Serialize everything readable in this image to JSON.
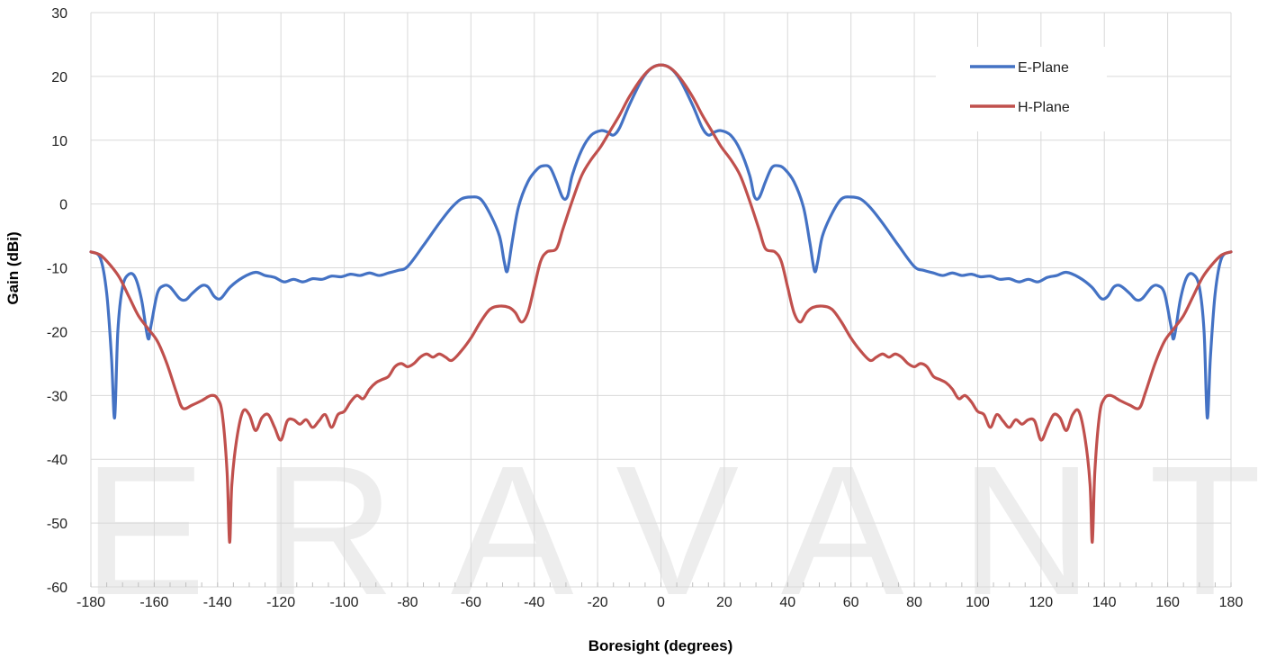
{
  "chart_data": {
    "type": "line",
    "title": "",
    "xlabel": "Boresight (degrees)",
    "ylabel": "Gain (dBi)",
    "xlim": [
      -180,
      180
    ],
    "ylim": [
      -60,
      30
    ],
    "xticks": [
      -180,
      -160,
      -140,
      -120,
      -100,
      -80,
      -60,
      -40,
      -20,
      0,
      20,
      40,
      60,
      80,
      100,
      120,
      140,
      160,
      180
    ],
    "yticks": [
      30,
      20,
      10,
      0,
      -10,
      -20,
      -30,
      -40,
      -50,
      -60
    ],
    "grid": true,
    "legend_position": "top-right",
    "watermark": "ERAVANT",
    "series": [
      {
        "name": "E-Plane",
        "color": "#4472C4",
        "points": [
          [
            -180,
            -7.5
          ],
          [
            -177,
            -8.5
          ],
          [
            -175,
            -14
          ],
          [
            -173.5,
            -24
          ],
          [
            -172.5,
            -33.5
          ],
          [
            -171.5,
            -20
          ],
          [
            -170,
            -13
          ],
          [
            -168,
            -11
          ],
          [
            -166,
            -11.5
          ],
          [
            -164,
            -15
          ],
          [
            -162,
            -21
          ],
          [
            -161,
            -19
          ],
          [
            -159,
            -14
          ],
          [
            -157,
            -12.8
          ],
          [
            -155,
            -13
          ],
          [
            -152,
            -14.8
          ],
          [
            -150,
            -15
          ],
          [
            -148,
            -14
          ],
          [
            -145,
            -12.8
          ],
          [
            -143,
            -13
          ],
          [
            -141,
            -14.5
          ],
          [
            -139,
            -14.8
          ],
          [
            -136,
            -13
          ],
          [
            -132,
            -11.5
          ],
          [
            -128,
            -10.7
          ],
          [
            -125,
            -11.2
          ],
          [
            -122,
            -11.5
          ],
          [
            -119,
            -12.2
          ],
          [
            -116,
            -11.8
          ],
          [
            -113,
            -12.2
          ],
          [
            -110,
            -11.7
          ],
          [
            -107,
            -11.8
          ],
          [
            -104,
            -11.3
          ],
          [
            -101,
            -11.4
          ],
          [
            -98,
            -11
          ],
          [
            -95,
            -11.2
          ],
          [
            -92,
            -10.8
          ],
          [
            -89,
            -11.2
          ],
          [
            -86,
            -10.8
          ],
          [
            -83,
            -10.4
          ],
          [
            -80,
            -9.8
          ],
          [
            -75,
            -6.5
          ],
          [
            -70,
            -3
          ],
          [
            -66,
            -0.5
          ],
          [
            -63,
            0.8
          ],
          [
            -60,
            1.1
          ],
          [
            -57,
            0.8
          ],
          [
            -54,
            -1.5
          ],
          [
            -51,
            -5
          ],
          [
            -49.5,
            -9
          ],
          [
            -48.5,
            -10.5
          ],
          [
            -47,
            -6
          ],
          [
            -45,
            -0.5
          ],
          [
            -42,
            3.5
          ],
          [
            -39,
            5.5
          ],
          [
            -37,
            6
          ],
          [
            -35,
            5.7
          ],
          [
            -33,
            3.5
          ],
          [
            -31,
            1
          ],
          [
            -29.5,
            1.2
          ],
          [
            -28,
            4.5
          ],
          [
            -25,
            8.5
          ],
          [
            -22,
            10.8
          ],
          [
            -19,
            11.5
          ],
          [
            -17,
            11.3
          ],
          [
            -15,
            10.8
          ],
          [
            -13,
            12
          ],
          [
            -10,
            15.5
          ],
          [
            -6,
            19.5
          ],
          [
            -3,
            21.3
          ],
          [
            0,
            21.8
          ],
          [
            3,
            21.3
          ],
          [
            6,
            19.5
          ],
          [
            10,
            15.5
          ],
          [
            13,
            12
          ],
          [
            15,
            10.8
          ],
          [
            17,
            11.3
          ],
          [
            19,
            11.5
          ],
          [
            22,
            10.8
          ],
          [
            25,
            8.5
          ],
          [
            28,
            4.5
          ],
          [
            29.5,
            1.2
          ],
          [
            31,
            1
          ],
          [
            33,
            3.5
          ],
          [
            35,
            5.7
          ],
          [
            37,
            6
          ],
          [
            39,
            5.5
          ],
          [
            42,
            3.5
          ],
          [
            45,
            -0.5
          ],
          [
            47,
            -6
          ],
          [
            48.5,
            -10.5
          ],
          [
            49.5,
            -9
          ],
          [
            51,
            -5
          ],
          [
            54,
            -1.5
          ],
          [
            57,
            0.8
          ],
          [
            60,
            1.1
          ],
          [
            63,
            0.8
          ],
          [
            66,
            -0.5
          ],
          [
            70,
            -3
          ],
          [
            75,
            -6.5
          ],
          [
            80,
            -9.8
          ],
          [
            83,
            -10.4
          ],
          [
            86,
            -10.8
          ],
          [
            89,
            -11.2
          ],
          [
            92,
            -10.8
          ],
          [
            95,
            -11.2
          ],
          [
            98,
            -11
          ],
          [
            101,
            -11.4
          ],
          [
            104,
            -11.3
          ],
          [
            107,
            -11.8
          ],
          [
            110,
            -11.7
          ],
          [
            113,
            -12.2
          ],
          [
            116,
            -11.8
          ],
          [
            119,
            -12.2
          ],
          [
            122,
            -11.5
          ],
          [
            125,
            -11.2
          ],
          [
            128,
            -10.7
          ],
          [
            132,
            -11.5
          ],
          [
            136,
            -13
          ],
          [
            139,
            -14.8
          ],
          [
            141,
            -14.5
          ],
          [
            143,
            -13
          ],
          [
            145,
            -12.8
          ],
          [
            148,
            -14
          ],
          [
            150,
            -15
          ],
          [
            152,
            -14.8
          ],
          [
            155,
            -13
          ],
          [
            157,
            -12.8
          ],
          [
            159,
            -14
          ],
          [
            161,
            -19
          ],
          [
            162,
            -21
          ],
          [
            164,
            -15
          ],
          [
            166,
            -11.5
          ],
          [
            168,
            -11
          ],
          [
            170,
            -13
          ],
          [
            171.5,
            -20
          ],
          [
            172.5,
            -33.5
          ],
          [
            173.5,
            -24
          ],
          [
            175,
            -14
          ],
          [
            177,
            -8.5
          ],
          [
            180,
            -7.5
          ]
        ]
      },
      {
        "name": "H-Plane",
        "color": "#C0504D",
        "points": [
          [
            -180,
            -7.5
          ],
          [
            -177,
            -8
          ],
          [
            -174,
            -9.5
          ],
          [
            -171,
            -11.5
          ],
          [
            -168,
            -14.5
          ],
          [
            -165,
            -17.5
          ],
          [
            -162,
            -19.5
          ],
          [
            -159,
            -21.5
          ],
          [
            -156,
            -25
          ],
          [
            -153,
            -29.5
          ],
          [
            -151,
            -32
          ],
          [
            -148,
            -31.5
          ],
          [
            -145,
            -30.8
          ],
          [
            -142,
            -30
          ],
          [
            -140,
            -30.5
          ],
          [
            -138.5,
            -33
          ],
          [
            -137,
            -42
          ],
          [
            -136.2,
            -53
          ],
          [
            -135.5,
            -44
          ],
          [
            -134,
            -37
          ],
          [
            -132,
            -32.5
          ],
          [
            -130,
            -33
          ],
          [
            -128,
            -35.5
          ],
          [
            -126,
            -33.5
          ],
          [
            -124,
            -33
          ],
          [
            -122,
            -35
          ],
          [
            -120,
            -37
          ],
          [
            -118,
            -34
          ],
          [
            -116,
            -33.8
          ],
          [
            -114,
            -34.5
          ],
          [
            -112,
            -33.8
          ],
          [
            -110,
            -35
          ],
          [
            -108,
            -34
          ],
          [
            -106,
            -33
          ],
          [
            -104,
            -35
          ],
          [
            -102,
            -33
          ],
          [
            -100,
            -32.5
          ],
          [
            -98,
            -31
          ],
          [
            -96,
            -30
          ],
          [
            -94,
            -30.5
          ],
          [
            -92,
            -29
          ],
          [
            -90,
            -28
          ],
          [
            -88,
            -27.5
          ],
          [
            -86,
            -27
          ],
          [
            -84,
            -25.5
          ],
          [
            -82,
            -25
          ],
          [
            -80,
            -25.5
          ],
          [
            -78,
            -25
          ],
          [
            -76,
            -24
          ],
          [
            -74,
            -23.5
          ],
          [
            -72,
            -24
          ],
          [
            -70,
            -23.5
          ],
          [
            -68,
            -24
          ],
          [
            -66,
            -24.5
          ],
          [
            -63,
            -23
          ],
          [
            -60,
            -21
          ],
          [
            -57,
            -18.5
          ],
          [
            -54,
            -16.5
          ],
          [
            -51,
            -16
          ],
          [
            -48,
            -16.2
          ],
          [
            -46,
            -17
          ],
          [
            -44,
            -18.5
          ],
          [
            -42,
            -17
          ],
          [
            -40,
            -13
          ],
          [
            -38,
            -9
          ],
          [
            -36,
            -7.5
          ],
          [
            -33,
            -7
          ],
          [
            -31,
            -4
          ],
          [
            -28,
            0.5
          ],
          [
            -25,
            4.5
          ],
          [
            -22,
            7
          ],
          [
            -19,
            9
          ],
          [
            -16,
            11.5
          ],
          [
            -13,
            14
          ],
          [
            -10,
            16.8
          ],
          [
            -6,
            19.8
          ],
          [
            -3,
            21.3
          ],
          [
            0,
            21.8
          ],
          [
            3,
            21.3
          ],
          [
            6,
            19.8
          ],
          [
            10,
            16.8
          ],
          [
            13,
            14
          ],
          [
            16,
            11.5
          ],
          [
            19,
            9
          ],
          [
            22,
            7
          ],
          [
            25,
            4.5
          ],
          [
            28,
            0.5
          ],
          [
            31,
            -4
          ],
          [
            33,
            -7
          ],
          [
            36,
            -7.5
          ],
          [
            38,
            -9
          ],
          [
            40,
            -13
          ],
          [
            42,
            -17
          ],
          [
            44,
            -18.5
          ],
          [
            46,
            -17
          ],
          [
            48,
            -16.2
          ],
          [
            51,
            -16
          ],
          [
            54,
            -16.5
          ],
          [
            57,
            -18.5
          ],
          [
            60,
            -21
          ],
          [
            63,
            -23
          ],
          [
            66,
            -24.5
          ],
          [
            68,
            -24
          ],
          [
            70,
            -23.5
          ],
          [
            72,
            -24
          ],
          [
            74,
            -23.5
          ],
          [
            76,
            -24
          ],
          [
            78,
            -25
          ],
          [
            80,
            -25.5
          ],
          [
            82,
            -25
          ],
          [
            84,
            -25.5
          ],
          [
            86,
            -27
          ],
          [
            88,
            -27.5
          ],
          [
            90,
            -28
          ],
          [
            92,
            -29
          ],
          [
            94,
            -30.5
          ],
          [
            96,
            -30
          ],
          [
            98,
            -31
          ],
          [
            100,
            -32.5
          ],
          [
            102,
            -33
          ],
          [
            104,
            -35
          ],
          [
            106,
            -33
          ],
          [
            108,
            -34
          ],
          [
            110,
            -35
          ],
          [
            112,
            -33.8
          ],
          [
            114,
            -34.5
          ],
          [
            116,
            -33.8
          ],
          [
            118,
            -34
          ],
          [
            120,
            -37
          ],
          [
            122,
            -35
          ],
          [
            124,
            -33
          ],
          [
            126,
            -33.5
          ],
          [
            128,
            -35.5
          ],
          [
            130,
            -33
          ],
          [
            132,
            -32.5
          ],
          [
            134,
            -37
          ],
          [
            135.5,
            -44
          ],
          [
            136.2,
            -53
          ],
          [
            137,
            -42
          ],
          [
            138.5,
            -33
          ],
          [
            140,
            -30.5
          ],
          [
            142,
            -30
          ],
          [
            145,
            -30.8
          ],
          [
            148,
            -31.5
          ],
          [
            151,
            -32
          ],
          [
            153,
            -29.5
          ],
          [
            156,
            -25
          ],
          [
            159,
            -21.5
          ],
          [
            162,
            -19.5
          ],
          [
            165,
            -17.5
          ],
          [
            168,
            -14.5
          ],
          [
            171,
            -11.5
          ],
          [
            174,
            -9.5
          ],
          [
            177,
            -8
          ],
          [
            180,
            -7.5
          ]
        ]
      }
    ]
  }
}
